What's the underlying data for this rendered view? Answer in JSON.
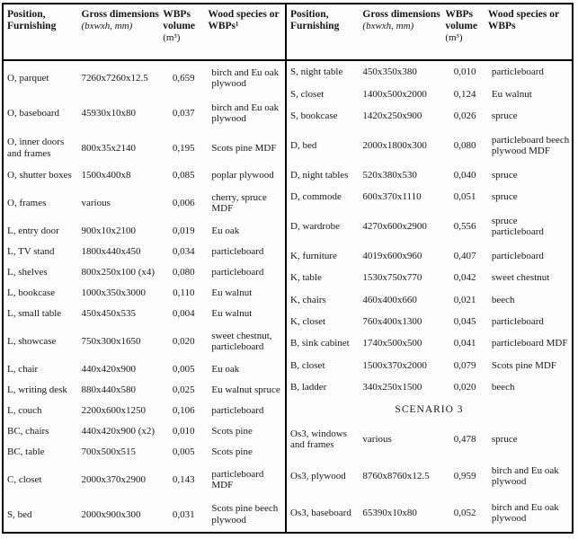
{
  "tables": {
    "left": {
      "header": {
        "position": "Position, Furnishing",
        "dimensions_label": "Gross dimensions",
        "dimensions_unit": "(bxwxh, mm)",
        "volume_label": "WBPs volume",
        "volume_unit": "(m³)",
        "species": "Wood species or WBPs¹"
      },
      "rows": [
        [
          "O, parquet",
          "7260x7260x12.5",
          "0,659",
          "birch and Eu oak plywood"
        ],
        [
          "O, baseboard",
          "45930x10x80",
          "0,037",
          "birch and Eu oak plywood"
        ],
        [
          "O, inner doors and frames",
          "800x35x2140",
          "0,195",
          "Scots pine MDF"
        ],
        [
          "O, shutter boxes",
          "1500x400x8",
          "0,085",
          "poplar plywood"
        ],
        [
          "O, frames",
          "various",
          "0,006",
          "cherry, spruce MDF"
        ],
        [
          "L, entry door",
          "900x10x2100",
          "0,019",
          "Eu oak"
        ],
        [
          "L, TV stand",
          "1800x440x450",
          "0,034",
          "particleboard"
        ],
        [
          "L, shelves",
          "800x250x100 (x4)",
          "0,080",
          "particleboard"
        ],
        [
          "L, bookcase",
          "1000x350x3000",
          "0,110",
          "Eu walnut"
        ],
        [
          "L, small table",
          "450x450x535",
          "0,004",
          "Eu walnut"
        ],
        [
          "L, showcase",
          "750x300x1650",
          "0,020",
          "sweet chestnut, particleboard"
        ],
        [
          "L, chair",
          "440x420x900",
          "0,005",
          "Eu oak"
        ],
        [
          "L, writing desk",
          "880x440x580",
          "0,025",
          "Eu walnut spruce"
        ],
        [
          "L, couch",
          "2200x600x1250",
          "0,106",
          "particleboard"
        ],
        [
          "BC, chairs",
          "440x420x900 (x2)",
          "0,010",
          "Scots pine"
        ],
        [
          "BC, table",
          "700x500x515",
          "0,005",
          "Scots pine"
        ],
        [
          "C, closet",
          "2000x370x2900",
          "0,143",
          "particleboard MDF"
        ],
        [
          "S, bed",
          "2000x900x300",
          "0,031",
          "Scots pine beech plywood"
        ]
      ]
    },
    "right": {
      "header": {
        "position": "Position, Furnishing",
        "dimensions_label": "Gross dimensions",
        "dimensions_unit": "(bxwxh, mm)",
        "volume_label": "WBPs volume",
        "volume_unit": "(m³)",
        "species": "Wood species or WBPs"
      },
      "rows": [
        [
          "S, night table",
          "450x350x380",
          "0,010",
          "particleboard"
        ],
        [
          "S, closet",
          "1400x500x2000",
          "0,124",
          "Eu walnut"
        ],
        [
          "S, bookcase",
          "1420x250x900",
          "0,026",
          "spruce"
        ],
        [
          "D, bed",
          "2000x1800x300",
          "0,080",
          "particleboard beech plywood MDF"
        ],
        [
          "D, night tables",
          "520x380x530",
          "0,040",
          "spruce"
        ],
        [
          "D, commode",
          "600x370x1110",
          "0,051",
          "spruce"
        ],
        [
          "D, wardrobe",
          "4270x600x2900",
          "0,556",
          "spruce particleboard"
        ],
        [
          "K, furniture",
          "4019x600x960",
          "0,407",
          "particleboard"
        ],
        [
          "K, table",
          "1530x750x770",
          "0,042",
          "sweet chestnut"
        ],
        [
          "K, chairs",
          "460x400x660",
          "0,021",
          "beech"
        ],
        [
          "K, closet",
          "760x400x1300",
          "0,045",
          "particleboard"
        ],
        [
          "B, sink cabinet",
          "1740x500x500",
          "0,041",
          "particleboard MDF"
        ],
        [
          "B, closet",
          "1500x370x2000",
          "0,079",
          "Scots pine MDF"
        ],
        [
          "B, ladder",
          "340x250x1500",
          "0,020",
          "beech"
        ],
        "SCENARIO 3",
        [
          "Os3, windows and frames",
          "various",
          "0,478",
          "spruce"
        ],
        [
          "Os3, plywood",
          "8760x8760x12.5",
          "0,959",
          "birch and Eu oak plywood"
        ],
        [
          "Os3, baseboard",
          "65390x10x80",
          "0,052",
          "birch and Eu oak plywood"
        ]
      ]
    }
  }
}
